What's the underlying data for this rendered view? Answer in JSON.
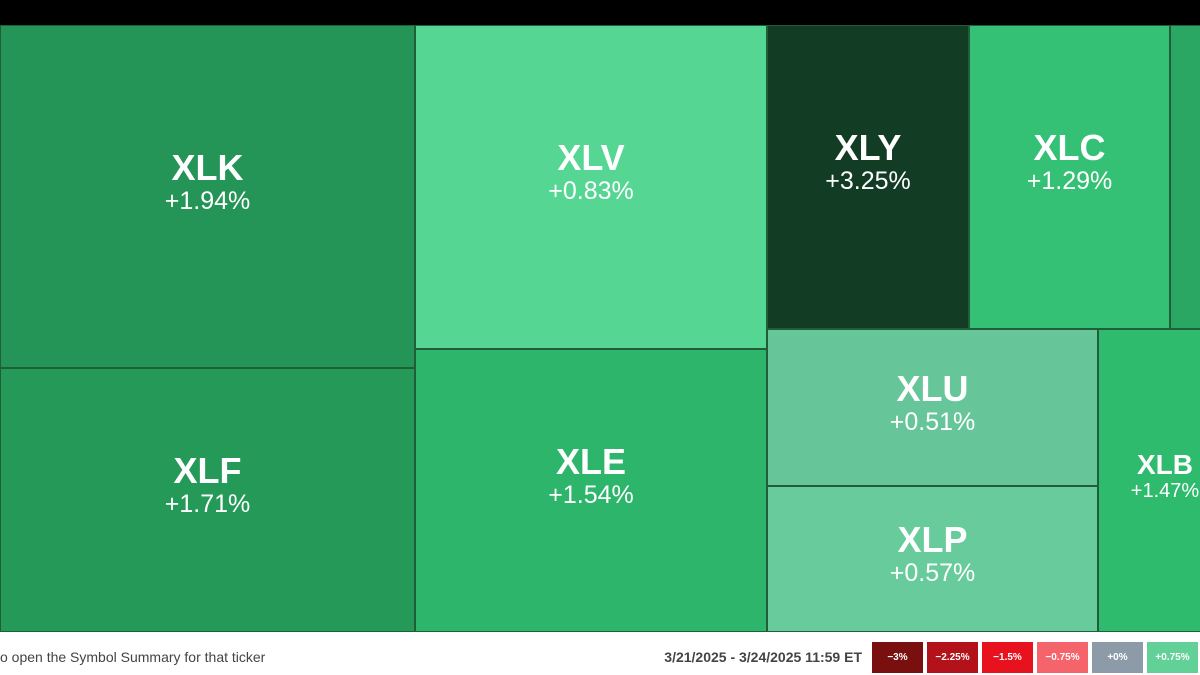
{
  "tiles": [
    {
      "symbol": "XLK",
      "change": "+1.94%",
      "color": "#249556"
    },
    {
      "symbol": "XLF",
      "change": "+1.71%",
      "color": "#259a58"
    },
    {
      "symbol": "XLV",
      "change": "+0.83%",
      "color": "#55d693"
    },
    {
      "symbol": "XLE",
      "change": "+1.54%",
      "color": "#2db56c"
    },
    {
      "symbol": "XLY",
      "change": "+3.25%",
      "color": "#123d24"
    },
    {
      "symbol": "XLC",
      "change": "+1.29%",
      "color": "#35c175"
    },
    {
      "color": "#2aa863"
    },
    {
      "symbol": "XLU",
      "change": "+0.51%",
      "color": "#66c699"
    },
    {
      "symbol": "XLP",
      "change": "+0.57%",
      "color": "#68cb9b"
    },
    {
      "symbol": "XLB",
      "change": "+1.47%",
      "color": "#2ebb6d"
    }
  ],
  "footer": {
    "hint": "o open the Symbol Summary for that ticker",
    "date_range": "3/21/2025 - 3/24/2025 11:59 ET",
    "legend": [
      {
        "label": "−3%",
        "color": "#7a0f10"
      },
      {
        "label": "−2.25%",
        "color": "#b3121a"
      },
      {
        "label": "−1.5%",
        "color": "#e8121f"
      },
      {
        "label": "−0.75%",
        "color": "#f5636b"
      },
      {
        "label": "+0%",
        "color": "#8d9aa7"
      },
      {
        "label": "+0.75%",
        "color": "#62d198"
      }
    ]
  }
}
